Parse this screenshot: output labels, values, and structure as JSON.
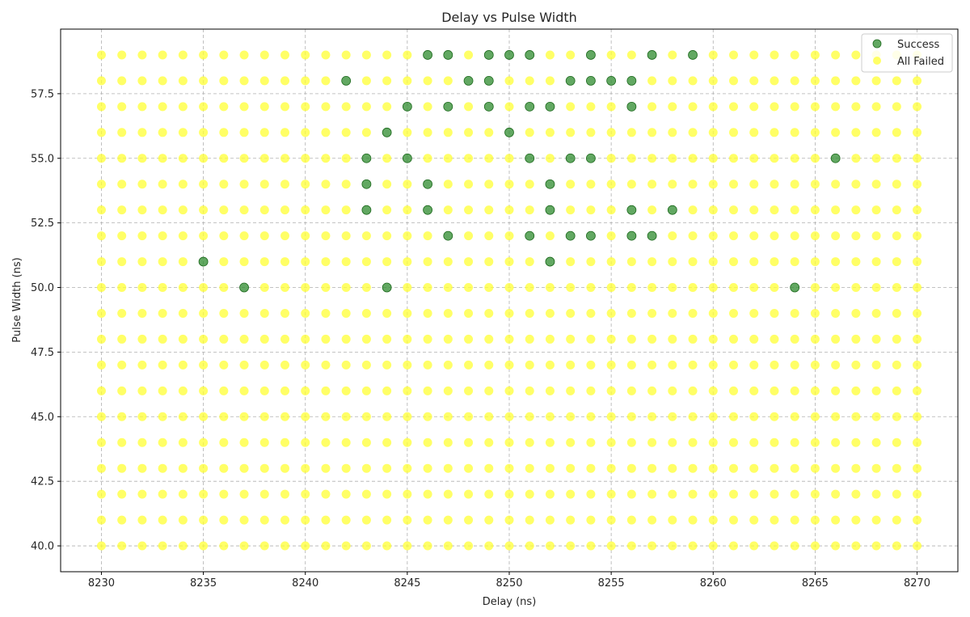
{
  "chart_data": {
    "type": "scatter",
    "title": "Delay vs Pulse Width",
    "xlabel": "Delay (ns)",
    "ylabel": "Pulse Width (ns)",
    "xlim": [
      8228,
      8272
    ],
    "ylim": [
      39,
      60
    ],
    "xticks": [
      8230,
      8235,
      8240,
      8245,
      8250,
      8255,
      8260,
      8265,
      8270
    ],
    "yticks": [
      40.0,
      42.5,
      45.0,
      47.5,
      50.0,
      52.5,
      55.0,
      57.5
    ],
    "ytick_labels": [
      "40.0",
      "42.5",
      "45.0",
      "47.5",
      "50.0",
      "52.5",
      "55.0",
      "57.5"
    ],
    "grid": true,
    "legend_position": "top-right",
    "grid_x_range": [
      8230,
      8270
    ],
    "grid_y_range": [
      40,
      59
    ],
    "series": [
      {
        "name": "Success",
        "color": "#2e8b2e",
        "points": [
          [
            8246,
            59
          ],
          [
            8247,
            59
          ],
          [
            8249,
            59
          ],
          [
            8250,
            59
          ],
          [
            8251,
            59
          ],
          [
            8254,
            59
          ],
          [
            8257,
            59
          ],
          [
            8259,
            59
          ],
          [
            8242,
            58
          ],
          [
            8248,
            58
          ],
          [
            8249,
            58
          ],
          [
            8253,
            58
          ],
          [
            8254,
            58
          ],
          [
            8255,
            58
          ],
          [
            8256,
            58
          ],
          [
            8245,
            57
          ],
          [
            8247,
            57
          ],
          [
            8249,
            57
          ],
          [
            8251,
            57
          ],
          [
            8252,
            57
          ],
          [
            8256,
            57
          ],
          [
            8244,
            56
          ],
          [
            8250,
            56
          ],
          [
            8243,
            55
          ],
          [
            8245,
            55
          ],
          [
            8251,
            55
          ],
          [
            8253,
            55
          ],
          [
            8254,
            55
          ],
          [
            8266,
            55
          ],
          [
            8243,
            54
          ],
          [
            8246,
            54
          ],
          [
            8252,
            54
          ],
          [
            8243,
            53
          ],
          [
            8246,
            53
          ],
          [
            8252,
            53
          ],
          [
            8256,
            53
          ],
          [
            8258,
            53
          ],
          [
            8247,
            52
          ],
          [
            8251,
            52
          ],
          [
            8253,
            52
          ],
          [
            8254,
            52
          ],
          [
            8256,
            52
          ],
          [
            8257,
            52
          ],
          [
            8235,
            51
          ],
          [
            8252,
            51
          ],
          [
            8237,
            50
          ],
          [
            8244,
            50
          ],
          [
            8264,
            50
          ]
        ]
      },
      {
        "name": "All Failed",
        "color": "#ffff33",
        "fill_grid": true
      }
    ]
  }
}
